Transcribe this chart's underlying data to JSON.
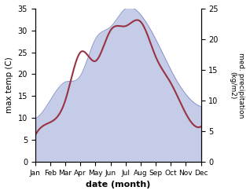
{
  "months": [
    "Jan",
    "Feb",
    "Mar",
    "Apr",
    "May",
    "Jun",
    "Jul",
    "Aug",
    "Sep",
    "Oct",
    "Nov",
    "Dec"
  ],
  "temp": [
    6,
    9,
    14,
    25,
    23,
    30,
    31,
    32,
    24,
    18,
    11,
    8
  ],
  "precip": [
    7,
    10,
    13,
    14,
    20,
    22,
    25,
    24,
    20,
    15,
    11,
    9
  ],
  "temp_color": "#993344",
  "precip_fill_color": "#c5cce8",
  "precip_edge_color": "#9099cc",
  "ylabel_left": "max temp (C)",
  "ylabel_right": "med. precipitation\n(kg/m2)",
  "xlabel": "date (month)",
  "ylim_left": [
    0,
    35
  ],
  "ylim_right": [
    0,
    25
  ],
  "yticks_left": [
    0,
    5,
    10,
    15,
    20,
    25,
    30,
    35
  ],
  "yticks_right": [
    0,
    5,
    10,
    15,
    20,
    25
  ],
  "background_color": "#ffffff"
}
